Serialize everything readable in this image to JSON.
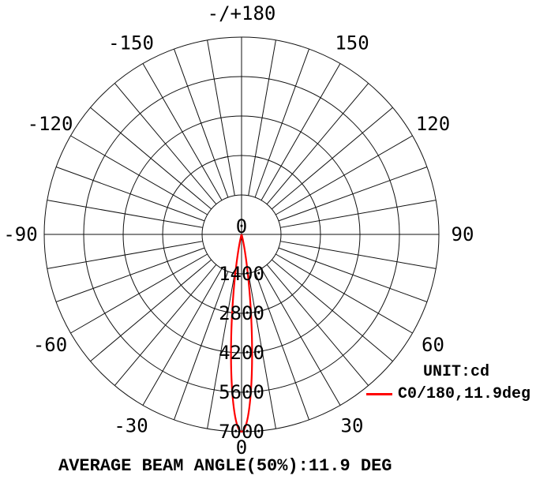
{
  "chart_data": {
    "type": "polar_line",
    "unit_label": "UNIT:cd",
    "footer": "AVERAGE BEAM ANGLE(50%):11.9 DEG",
    "legend": {
      "series_label": "C0/180,11.9deg",
      "color": "#ff0000",
      "position": "bottom-right"
    },
    "radial_ticks": [
      0,
      1400,
      2800,
      4200,
      5600,
      7000
    ],
    "radial_max": 7000,
    "radial_unit": "cd",
    "angle_labels": [
      {
        "angle": 0,
        "text": "0"
      },
      {
        "angle": 30,
        "text": "30"
      },
      {
        "angle": 60,
        "text": "60"
      },
      {
        "angle": 90,
        "text": "90"
      },
      {
        "angle": 120,
        "text": "120"
      },
      {
        "angle": 150,
        "text": "150"
      },
      {
        "angle": 180,
        "text": "-/+180"
      },
      {
        "angle": -30,
        "text": "-30"
      },
      {
        "angle": -60,
        "text": "-60"
      },
      {
        "angle": -90,
        "text": "-90"
      },
      {
        "angle": -120,
        "text": "-120"
      },
      {
        "angle": -150,
        "text": "-150"
      }
    ],
    "grid": {
      "spoke_step_deg": 10,
      "ring_step_cd": 1400,
      "color": "#111111",
      "orientation": "0-down"
    },
    "series": [
      {
        "name": "C0/180,11.9deg",
        "color": "#ff0000",
        "peak_cd": 7000,
        "peak_angle_deg": 0,
        "beam_angle_50pct_deg": 11.9,
        "profile": "gaussian",
        "angle_span_deg": [
          -20,
          20
        ]
      }
    ]
  }
}
